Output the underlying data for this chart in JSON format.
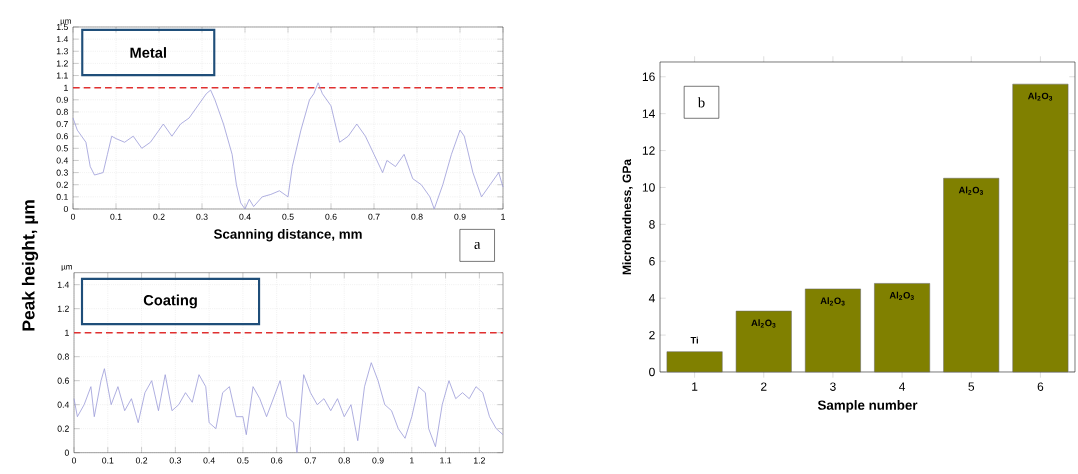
{
  "chart_data": [
    {
      "type": "line",
      "xlabel": "Scanning distance, mm",
      "ylabel": "Peak height, µm",
      "annotations": [
        "µm",
        "Metal",
        "a"
      ],
      "x": [
        0,
        0.01,
        0.03,
        0.04,
        0.05,
        0.07,
        0.08,
        0.09,
        0.1,
        0.12,
        0.14,
        0.16,
        0.18,
        0.2,
        0.21,
        0.23,
        0.25,
        0.27,
        0.29,
        0.31,
        0.32,
        0.33,
        0.35,
        0.37,
        0.38,
        0.39,
        0.4,
        0.41,
        0.42,
        0.44,
        0.46,
        0.48,
        0.5,
        0.51,
        0.53,
        0.55,
        0.56,
        0.57,
        0.58,
        0.6,
        0.62,
        0.64,
        0.66,
        0.68,
        0.7,
        0.72,
        0.73,
        0.75,
        0.77,
        0.79,
        0.81,
        0.83,
        0.84,
        0.86,
        0.88,
        0.9,
        0.91,
        0.93,
        0.95,
        0.97,
        0.99,
        1
      ],
      "values": [
        0.75,
        0.65,
        0.55,
        0.35,
        0.28,
        0.3,
        0.45,
        0.6,
        0.58,
        0.55,
        0.6,
        0.5,
        0.55,
        0.65,
        0.7,
        0.6,
        0.7,
        0.75,
        0.85,
        0.95,
        0.98,
        0.9,
        0.7,
        0.45,
        0.2,
        0.05,
        0,
        0.08,
        0.02,
        0.1,
        0.12,
        0.15,
        0.1,
        0.35,
        0.65,
        0.9,
        0.95,
        1.04,
        0.95,
        0.85,
        0.55,
        0.6,
        0.7,
        0.6,
        0.45,
        0.3,
        0.4,
        0.35,
        0.45,
        0.25,
        0.2,
        0.1,
        0,
        0.2,
        0.45,
        0.65,
        0.6,
        0.3,
        0.1,
        0.2,
        0.3,
        0.18
      ],
      "color": "#9a9ad8",
      "xlim": [
        0,
        1
      ],
      "ylim": [
        0,
        1.5
      ],
      "xticks": [
        0,
        0.1,
        0.2,
        0.3,
        0.4,
        0.5,
        0.6,
        0.7,
        0.8,
        0.9,
        1
      ],
      "yticks": [
        0,
        0.1,
        0.2,
        0.3,
        0.4,
        0.5,
        0.6,
        0.7,
        0.8,
        0.9,
        1,
        1.1,
        1.2,
        1.3,
        1.4,
        1.5
      ],
      "grid": true,
      "ref_lines": [
        {
          "axis": "y",
          "value": 1,
          "color": "#e03030",
          "line_style": "dashed"
        }
      ]
    },
    {
      "type": "line",
      "annotations": [
        "µm",
        "Coating"
      ],
      "x": [
        0,
        0.01,
        0.03,
        0.05,
        0.06,
        0.08,
        0.09,
        0.11,
        0.13,
        0.15,
        0.17,
        0.19,
        0.21,
        0.23,
        0.25,
        0.27,
        0.29,
        0.31,
        0.33,
        0.35,
        0.37,
        0.39,
        0.4,
        0.42,
        0.44,
        0.46,
        0.48,
        0.5,
        0.51,
        0.53,
        0.55,
        0.57,
        0.59,
        0.61,
        0.63,
        0.65,
        0.66,
        0.68,
        0.7,
        0.72,
        0.74,
        0.76,
        0.78,
        0.8,
        0.82,
        0.84,
        0.86,
        0.88,
        0.9,
        0.92,
        0.94,
        0.96,
        0.98,
        1,
        1.02,
        1.04,
        1.05,
        1.07,
        1.09,
        1.11,
        1.13,
        1.15,
        1.17,
        1.19,
        1.21,
        1.23,
        1.25,
        1.27
      ],
      "values": [
        0.45,
        0.3,
        0.4,
        0.55,
        0.3,
        0.6,
        0.7,
        0.4,
        0.55,
        0.35,
        0.45,
        0.25,
        0.5,
        0.6,
        0.35,
        0.65,
        0.35,
        0.4,
        0.5,
        0.42,
        0.65,
        0.55,
        0.25,
        0.2,
        0.5,
        0.55,
        0.3,
        0.3,
        0.15,
        0.55,
        0.45,
        0.3,
        0.45,
        0.6,
        0.3,
        0.25,
        0,
        0.65,
        0.5,
        0.4,
        0.45,
        0.35,
        0.45,
        0.3,
        0.4,
        0.1,
        0.55,
        0.75,
        0.6,
        0.4,
        0.35,
        0.2,
        0.12,
        0.3,
        0.55,
        0.5,
        0.2,
        0.05,
        0.4,
        0.6,
        0.45,
        0.5,
        0.45,
        0.55,
        0.5,
        0.3,
        0.2,
        0.15
      ],
      "color": "#9a9ad8",
      "xlim": [
        0,
        1.27
      ],
      "ylim": [
        0,
        1.5
      ],
      "xticks": [
        0,
        0.1,
        0.2,
        0.3,
        0.4,
        0.5,
        0.6,
        0.7,
        0.8,
        0.9,
        1,
        1.1,
        1.2
      ],
      "yticks": [
        0,
        0.2,
        0.4,
        0.6,
        0.8,
        1,
        1.2,
        1.4
      ],
      "grid": true,
      "ref_lines": [
        {
          "axis": "y",
          "value": 1,
          "color": "#e03030",
          "line_style": "dashed"
        }
      ]
    },
    {
      "type": "bar",
      "xlabel": "Sample number",
      "ylabel": "Microhardness, GPa",
      "categories": [
        "1",
        "2",
        "3",
        "4",
        "5",
        "6"
      ],
      "values": [
        1.1,
        3.3,
        4.5,
        4.8,
        10.5,
        15.6
      ],
      "color": "#808000",
      "ylim": [
        0,
        16.8
      ],
      "yticks": [
        0,
        2,
        4,
        6,
        8,
        10,
        12,
        14,
        16
      ],
      "annotations": [
        "b",
        "Ti",
        "Al$_{2}$O$_{3}$",
        "Al$_{2}$O$_{3}$",
        "Al$_{2}$O$_{3}$",
        "Al$_{2}$O$_{3}$",
        "Al$_{2}$O$_{3}$"
      ]
    }
  ]
}
